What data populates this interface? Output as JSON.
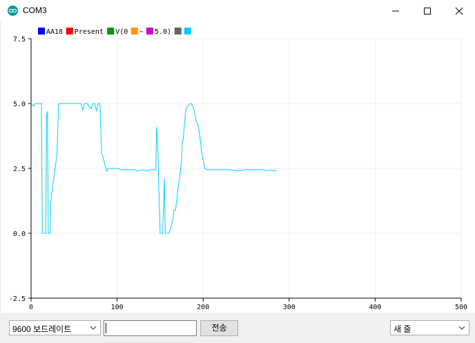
{
  "window": {
    "title": "COM3"
  },
  "legend": [
    {
      "label": "AA18",
      "color": "#0000ff"
    },
    {
      "label": "Present",
      "color": "#ff0000"
    },
    {
      "label": "V(0",
      "color": "#009900"
    },
    {
      "label": "~",
      "color": "#ff9900"
    },
    {
      "label": "5.0)",
      "color": "#cc00cc"
    },
    {
      "label": "",
      "color": "#666666"
    },
    {
      "label": "",
      "color": "#00ccff"
    }
  ],
  "chart_data": {
    "type": "line",
    "xlim": [
      0,
      500
    ],
    "ylim": [
      -2.5,
      7.5
    ],
    "x_ticks": [
      "0",
      "100",
      "200",
      "300",
      "400",
      "500"
    ],
    "y_ticks": [
      "7.5",
      "5.0",
      "2.5",
      "0.0",
      "-2.5"
    ],
    "grid": true,
    "series": [
      {
        "color": "#00ccff",
        "x": [
          0,
          3,
          5,
          10,
          12,
          13,
          14,
          17,
          18,
          19,
          20,
          22,
          23,
          24,
          26,
          28,
          30,
          32,
          35,
          40,
          50,
          58,
          60,
          62,
          65,
          70,
          72,
          74,
          76,
          78,
          80,
          82,
          84,
          86,
          88,
          90,
          95,
          100,
          105,
          110,
          115,
          120,
          125,
          130,
          135,
          140,
          143,
          145,
          146,
          147,
          148,
          150,
          151,
          153,
          154,
          155,
          156,
          158,
          160,
          162,
          163,
          165,
          166,
          168,
          170,
          172,
          174,
          175,
          176,
          177,
          178,
          180,
          182,
          185,
          186,
          188,
          190,
          192,
          194,
          196,
          198,
          200,
          202,
          205,
          210,
          220,
          230,
          240,
          250,
          260,
          270,
          275,
          278,
          282,
          285
        ],
        "y": [
          5.0,
          4.9,
          5.0,
          5.0,
          5.0,
          0.0,
          0.0,
          0.0,
          4.5,
          4.7,
          0.0,
          0.0,
          1.2,
          1.5,
          2.0,
          2.5,
          3.0,
          5.0,
          5.0,
          5.0,
          5.0,
          5.0,
          4.75,
          5.0,
          5.0,
          4.8,
          5.0,
          5.0,
          4.7,
          5.0,
          5.0,
          3.1,
          2.9,
          2.6,
          2.4,
          2.5,
          2.5,
          2.5,
          2.45,
          2.45,
          2.45,
          2.45,
          2.4,
          2.45,
          2.4,
          2.45,
          2.45,
          2.45,
          4.1,
          3.6,
          2.4,
          0.0,
          0.0,
          0.0,
          1.1,
          2.1,
          0.0,
          0.0,
          0.0,
          0.15,
          0.3,
          0.5,
          0.9,
          0.9,
          1.5,
          2.0,
          2.5,
          2.9,
          3.6,
          3.6,
          4.1,
          4.8,
          4.9,
          5.0,
          5.0,
          4.9,
          4.7,
          4.3,
          4.2,
          3.8,
          3.2,
          2.8,
          2.5,
          2.45,
          2.45,
          2.45,
          2.45,
          2.4,
          2.45,
          2.45,
          2.45,
          2.4,
          2.45,
          2.4,
          2.45
        ]
      }
    ]
  },
  "bottom": {
    "baud_rate": "9600 보드레이트",
    "send_label": "전송",
    "line_ending": "새 줄"
  }
}
